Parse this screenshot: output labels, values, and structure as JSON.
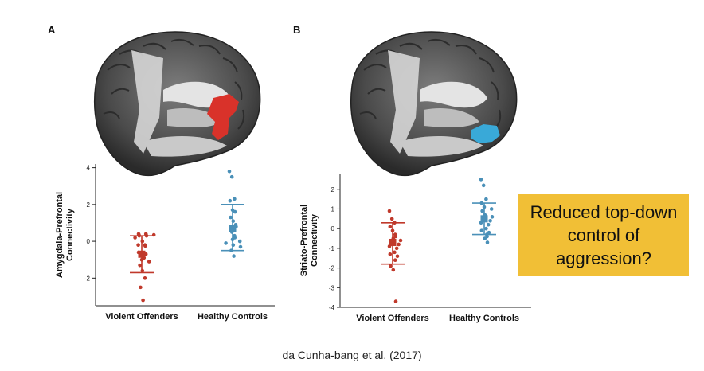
{
  "panels": [
    {
      "label": "A"
    },
    {
      "label": "B"
    }
  ],
  "callout": {
    "text": "Reduced top-down control of aggression?"
  },
  "citation": "da Cunha-bang et al. (2017)",
  "colors": {
    "violent": "#c0392b",
    "healthy": "#4a90b8",
    "roi_red": "#d9322a",
    "roi_blue": "#39a9d8",
    "callout_bg": "#f1bf36"
  },
  "chart_data": [
    {
      "type": "scatter",
      "title": "",
      "ylabel": "Amygdala-Prefrontal Connectivity",
      "categories": [
        "Violent Offenders",
        "Healthy Controls"
      ],
      "ylim": [
        -3.5,
        4.2
      ],
      "yticks": [
        -2,
        0,
        2,
        4
      ],
      "grid": false,
      "series": [
        {
          "category": "Violent Offenders",
          "mean": -0.7,
          "upper": 0.3,
          "lower": -1.7,
          "points": [
            0.4,
            0.4,
            0.35,
            0.3,
            0.3,
            0.35,
            0.2,
            0.0,
            -0.2,
            -0.25,
            -0.2,
            -0.6,
            -0.7,
            -0.8,
            -0.9,
            -1.0,
            -1.1,
            -1.3,
            -1.6,
            -2.0,
            -2.5,
            -3.2
          ]
        },
        {
          "category": "Healthy Controls",
          "mean": 0.7,
          "upper": 2.0,
          "lower": -0.5,
          "points": [
            3.8,
            3.5,
            2.3,
            2.2,
            1.7,
            1.6,
            1.3,
            1.1,
            0.9,
            0.8,
            0.7,
            0.6,
            0.5,
            0.3,
            0.2,
            0.1,
            0.0,
            -0.1,
            -0.2,
            -0.3,
            -0.5,
            -0.8
          ]
        }
      ]
    },
    {
      "type": "scatter",
      "title": "",
      "ylabel": "Striato-Prefrontal Connectivity",
      "categories": [
        "Violent Offenders",
        "Healthy Controls"
      ],
      "ylim": [
        -4,
        2.8
      ],
      "yticks": [
        -4,
        -3,
        -2,
        -1,
        0,
        1,
        2
      ],
      "grid": false,
      "series": [
        {
          "category": "Violent Offenders",
          "mean": -0.7,
          "upper": 0.3,
          "lower": -1.8,
          "points": [
            0.9,
            0.5,
            0.3,
            0.1,
            -0.1,
            -0.3,
            -0.4,
            -0.5,
            -0.6,
            -0.7,
            -0.8,
            -0.9,
            -1.0,
            -1.2,
            -1.3,
            -1.4,
            -1.6,
            -1.9,
            -2.1,
            -3.7
          ]
        },
        {
          "category": "Healthy Controls",
          "mean": 0.5,
          "upper": 1.3,
          "lower": -0.3,
          "points": [
            2.5,
            2.2,
            1.5,
            1.3,
            1.1,
            1.0,
            0.9,
            0.7,
            0.6,
            0.5,
            0.4,
            0.3,
            0.2,
            0.0,
            -0.1,
            -0.2,
            -0.3,
            -0.4,
            -0.5,
            -0.7
          ]
        }
      ]
    }
  ]
}
